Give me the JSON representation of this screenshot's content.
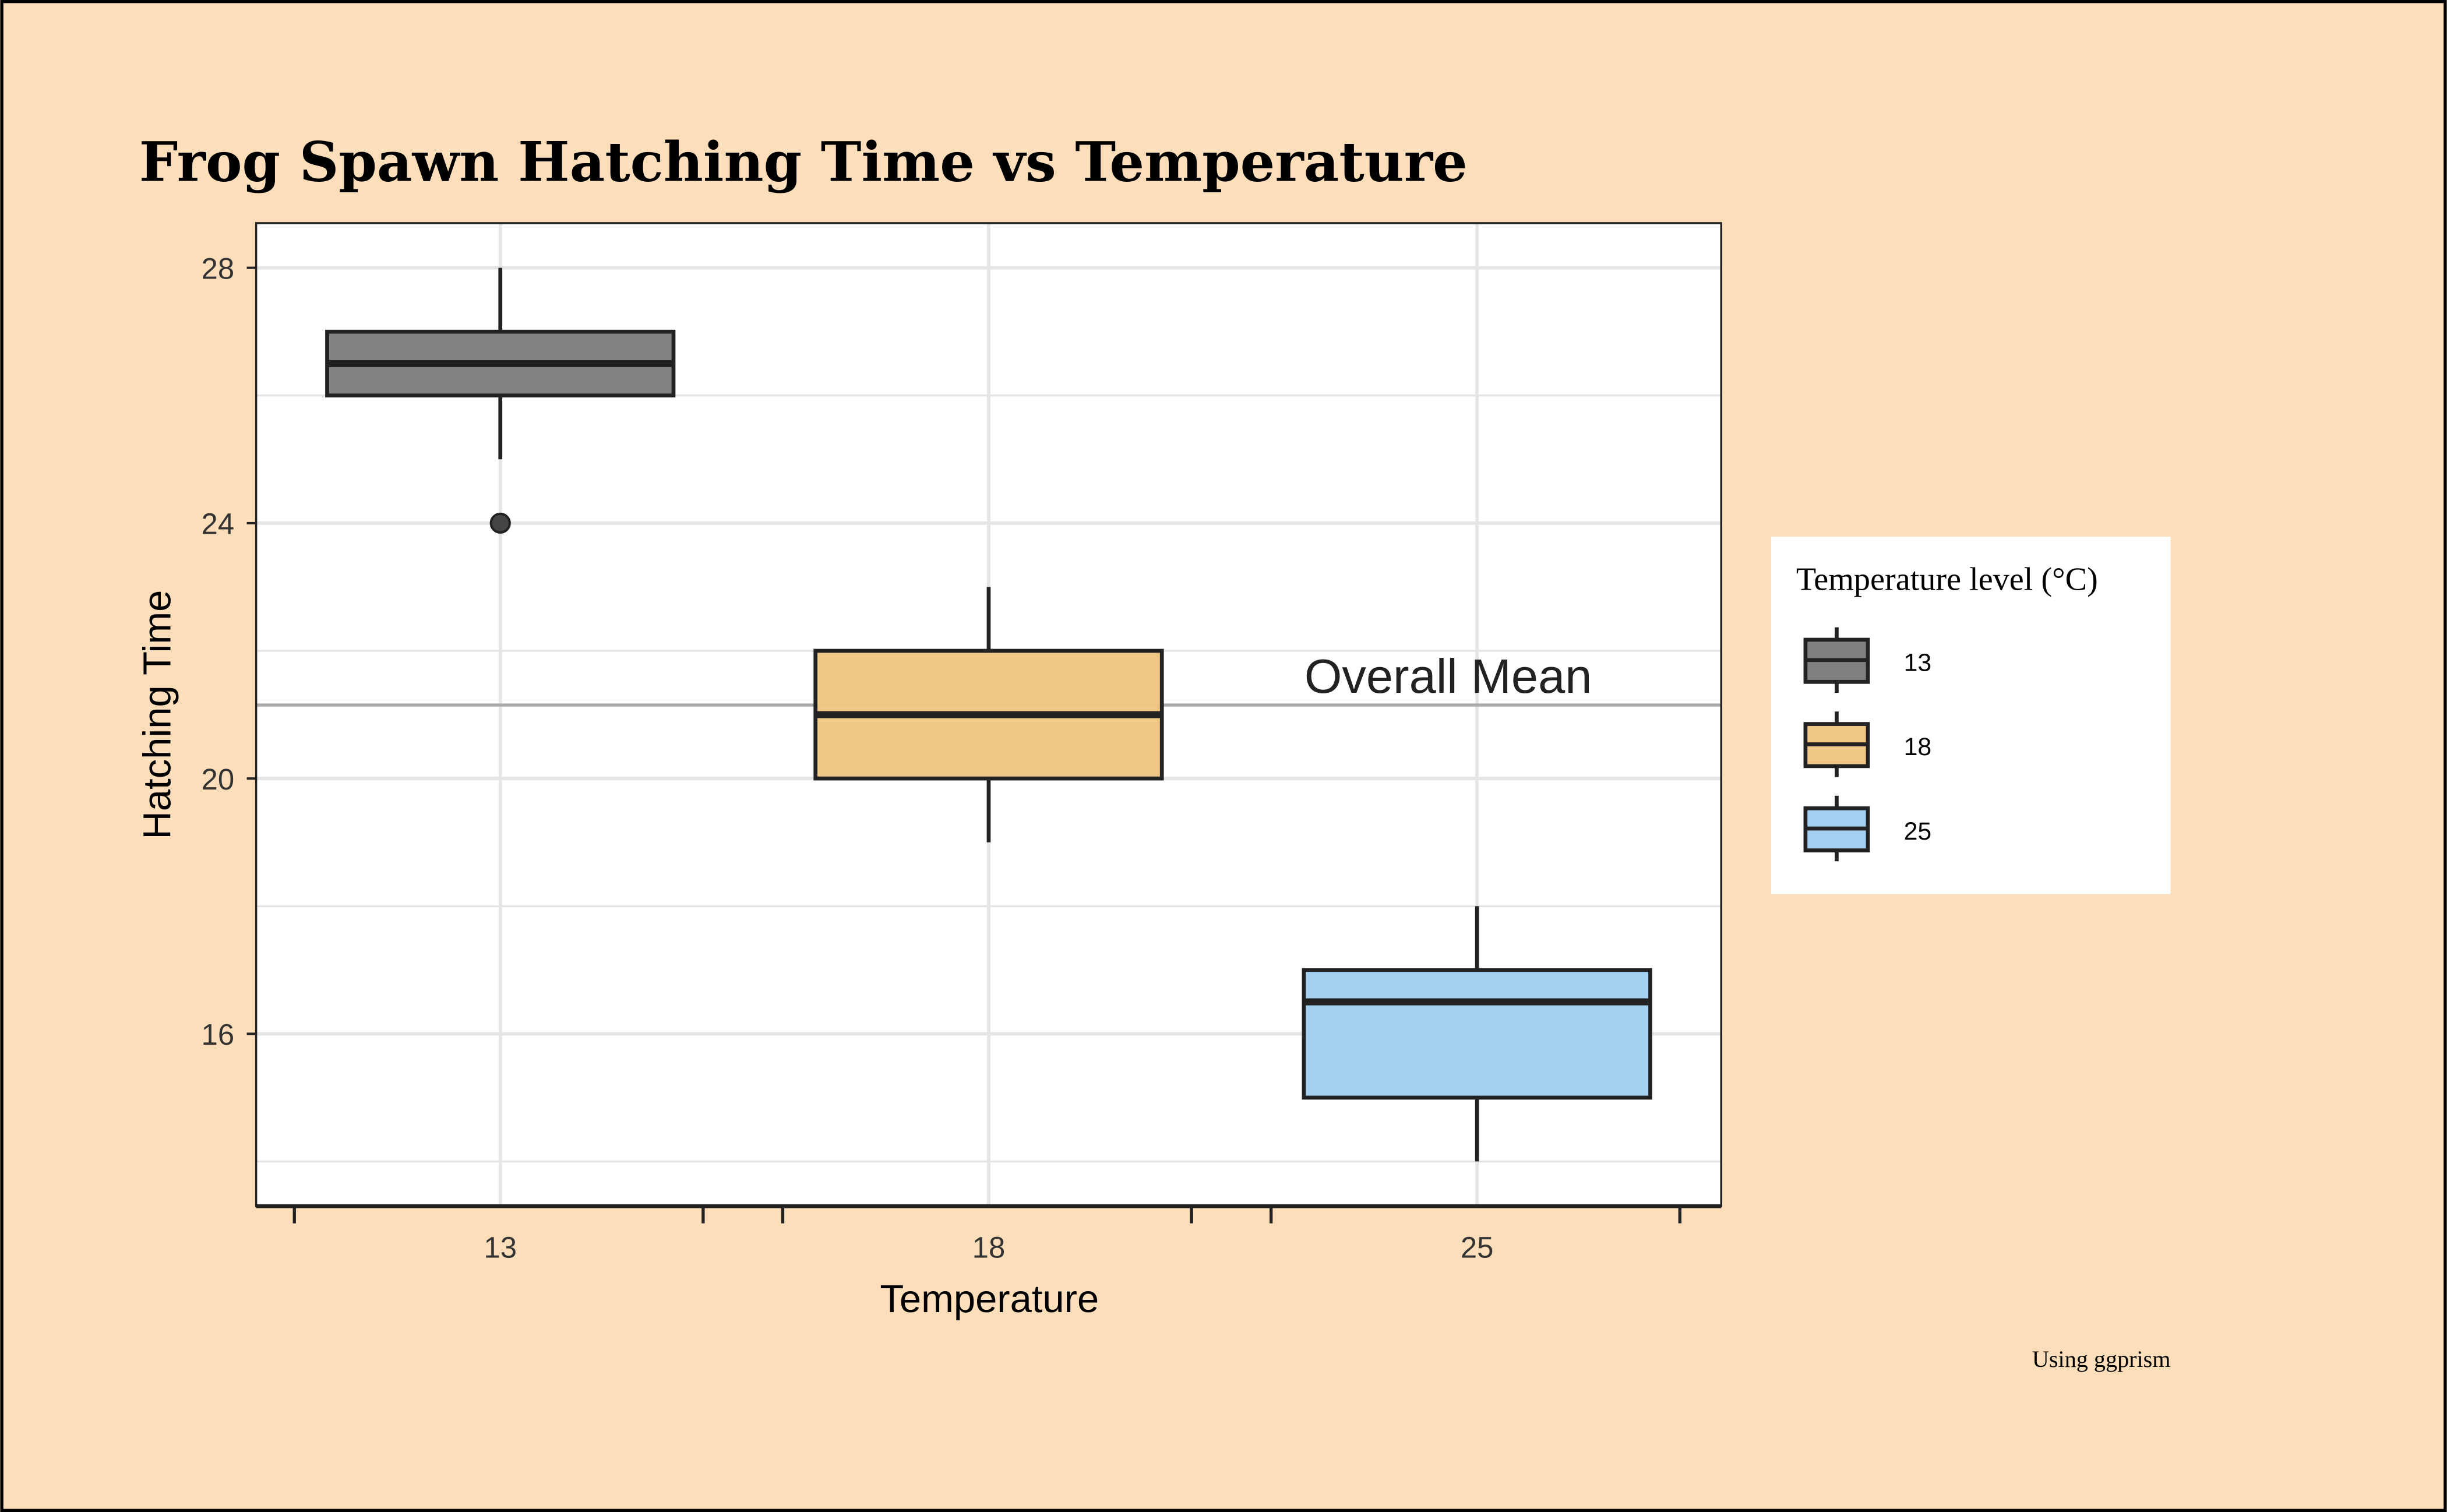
{
  "chart_data": {
    "type": "box",
    "title": "Frog Spawn Hatching Time vs Temperature",
    "xlabel": "Temperature",
    "ylabel": "Hatching Time",
    "caption": "Using ggprism",
    "categories": [
      "13",
      "18",
      "25"
    ],
    "ylim": [
      13.3,
      28.7
    ],
    "yticks": [
      16,
      20,
      24,
      28
    ],
    "grid": true,
    "boxes": [
      {
        "category": "13",
        "whisker_low": 25,
        "q1": 26,
        "median": 26.5,
        "q3": 27,
        "whisker_high": 28,
        "outliers": [
          24
        ],
        "color": "#808080"
      },
      {
        "category": "18",
        "whisker_low": 19,
        "q1": 20,
        "median": 21,
        "q3": 22,
        "whisker_high": 23,
        "outliers": [],
        "color": "#efc685"
      },
      {
        "category": "25",
        "whisker_low": 14,
        "q1": 15,
        "median": 16.5,
        "q3": 17,
        "whisker_high": 18,
        "outliers": [],
        "color": "#a3d0f0"
      }
    ],
    "reference_line": {
      "value": 21.15,
      "label": "Overall Mean",
      "color": "#aaaaaa"
    },
    "legend": {
      "title": "Temperature level (°C)",
      "position": "right",
      "entries": [
        "13",
        "18",
        "25"
      ]
    },
    "background": "#fddebb"
  }
}
